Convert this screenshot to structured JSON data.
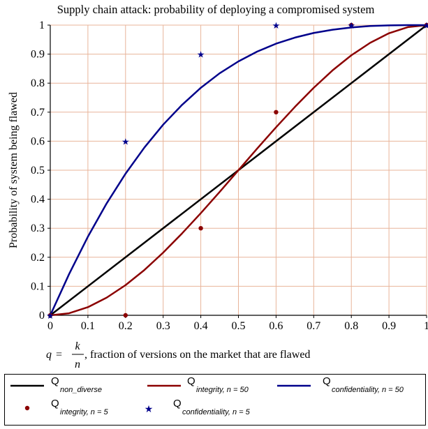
{
  "chart_data": {
    "type": "line",
    "title": "Supply chain attack: probability of deploying a compromised system",
    "ylabel": "Probability of system being flawed",
    "xlabel": {
      "q": "q",
      "equals": "=",
      "numerator": "k",
      "denominator": "n",
      "rest": ", fraction of versions on the market that are flawed"
    },
    "xlim": [
      0,
      1
    ],
    "ylim": [
      0,
      1
    ],
    "xticks": [
      "0",
      "0.1",
      "0.2",
      "0.3",
      "0.4",
      "0.5",
      "0.6",
      "0.7",
      "0.8",
      "0.9",
      "1"
    ],
    "yticks": [
      "0",
      "0.1",
      "0.2",
      "0.3",
      "0.4",
      "0.5",
      "0.6",
      "0.7",
      "0.8",
      "0.9",
      "1"
    ],
    "grid": true,
    "grid_color": "#e8b49a",
    "legend_placement": "bottom",
    "series": [
      {
        "kind": "line",
        "color": "#000000",
        "legend": {
          "main": "Q",
          "sub": "non_diverse"
        },
        "x": [
          0,
          1
        ],
        "y": [
          0,
          1
        ]
      },
      {
        "kind": "line",
        "color": "#8b0000",
        "legend": {
          "main": "Q",
          "sub": "integrity, n = 50"
        },
        "x": [
          0,
          0.05,
          0.1,
          0.15,
          0.2,
          0.25,
          0.3,
          0.35,
          0.4,
          0.45,
          0.5,
          0.55,
          0.6,
          0.65,
          0.7,
          0.75,
          0.8,
          0.85,
          0.9,
          0.95,
          1
        ],
        "y": [
          0,
          0.007,
          0.028,
          0.061,
          0.104,
          0.156,
          0.216,
          0.282,
          0.352,
          0.425,
          0.5,
          0.575,
          0.648,
          0.718,
          0.784,
          0.844,
          0.896,
          0.939,
          0.972,
          0.993,
          1
        ]
      },
      {
        "kind": "line",
        "color": "#00008b",
        "legend": {
          "main": "Q",
          "sub": "confidentiality, n = 50"
        },
        "x": [
          0,
          0.05,
          0.1,
          0.15,
          0.2,
          0.25,
          0.3,
          0.35,
          0.4,
          0.45,
          0.5,
          0.55,
          0.6,
          0.65,
          0.7,
          0.75,
          0.8,
          0.85,
          0.9,
          0.95,
          1
        ],
        "y": [
          0,
          0.142,
          0.271,
          0.386,
          0.488,
          0.578,
          0.657,
          0.725,
          0.784,
          0.834,
          0.875,
          0.909,
          0.936,
          0.957,
          0.973,
          0.984,
          0.992,
          0.997,
          0.999,
          1.0,
          1
        ]
      },
      {
        "kind": "dots",
        "color": "#8b0000",
        "legend": {
          "main": "Q",
          "sub": "integrity, n = 5"
        },
        "x": [
          0,
          0.2,
          0.4,
          0.6,
          0.8,
          1
        ],
        "y": [
          0,
          0,
          0.3,
          0.7,
          1,
          1
        ]
      },
      {
        "kind": "stars",
        "color": "#00008b",
        "legend": {
          "main": "Q",
          "sub": "confidentiality, n = 5"
        },
        "x": [
          0,
          0.2,
          0.4,
          0.6,
          0.8,
          1
        ],
        "y": [
          0,
          0.6,
          0.9,
          1,
          1,
          1
        ]
      }
    ]
  }
}
